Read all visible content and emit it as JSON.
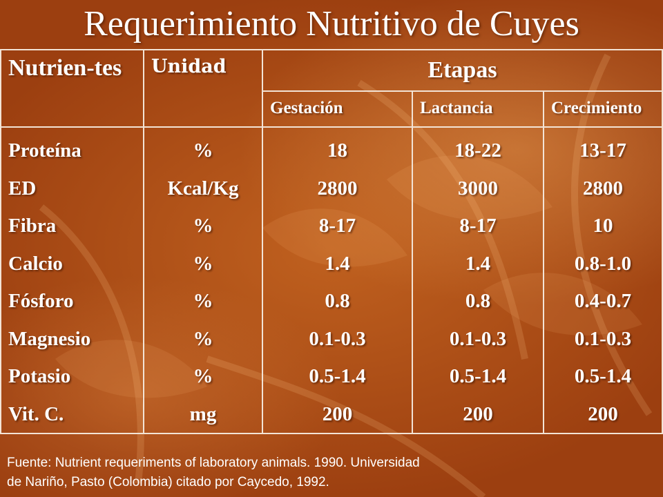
{
  "title": "Requerimiento Nutritivo de Cuyes",
  "table": {
    "header_nutrientes": "Nutrien-tes",
    "header_unidad": "Unidad",
    "header_etapas": "Etapas",
    "subheaders": [
      "Gestación",
      "Lactancia",
      "Crecimiento"
    ],
    "nutrientes": [
      "Proteína",
      "ED",
      "Fibra",
      "Calcio",
      "Fósforo",
      "Magnesio",
      "Potasio",
      "Vit. C."
    ],
    "unidad": [
      "%",
      "Kcal/Kg",
      "%",
      "%",
      "%",
      "%",
      "%",
      "mg"
    ],
    "gestacion": [
      "18",
      "2800",
      "8-17",
      "1.4",
      "0.8",
      "0.1-0.3",
      "0.5-1.4",
      "200"
    ],
    "lactancia": [
      "18-22",
      "3000",
      "8-17",
      "1.4",
      "0.8",
      "0.1-0.3",
      "0.5-1.4",
      "200"
    ],
    "crecimiento": [
      "13-17",
      "2800",
      "10",
      "0.8-1.0",
      "0.4-0.7",
      "0.1-0.3",
      "0.5-1.4",
      "200"
    ]
  },
  "footer": {
    "line1": "Fuente: Nutrient requeriments of laboratory animals. 1990. Universidad",
    "line2": "de Nariño, Pasto (Colombia) citado por Caycedo, 1992."
  }
}
